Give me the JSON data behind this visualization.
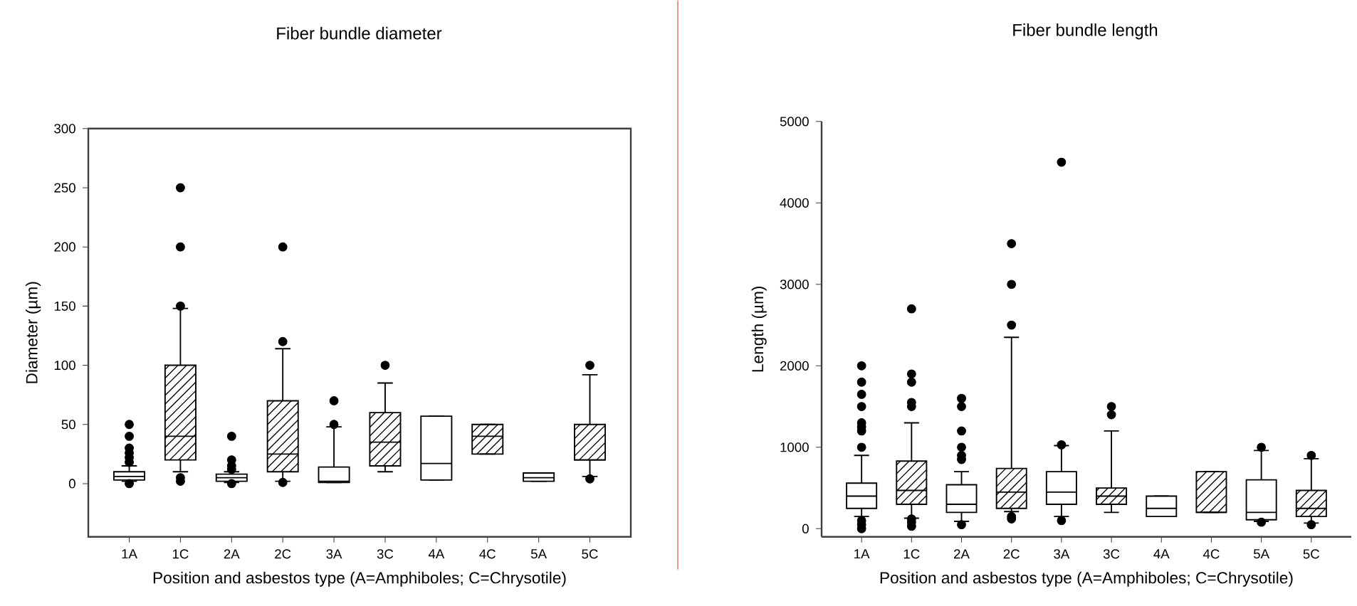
{
  "chart_data": [
    {
      "type": "box",
      "title": "Fiber bundle diameter",
      "xlabel": "Position and asbestos type (A=Amphiboles; C=Chrysotile)",
      "ylabel": "Diameter (µm)",
      "categories": [
        "1A",
        "1C",
        "2A",
        "2C",
        "3A",
        "3C",
        "4A",
        "4C",
        "5A",
        "5C"
      ],
      "ylim": [
        -45,
        300
      ],
      "yticks": [
        0,
        50,
        100,
        150,
        200,
        250,
        300
      ],
      "marker": "circle",
      "series": [
        {
          "color": "#ffffff",
          "boxes": [
            {
              "low": 2,
              "q1": 3,
              "median": 6,
              "q3": 10,
              "high": 15,
              "outliers": [
                0,
                18,
                22,
                26,
                30,
                40,
                50
              ]
            },
            null,
            {
              "low": 1,
              "q1": 2,
              "median": 5,
              "q3": 8,
              "high": 10,
              "outliers": [
                0,
                12,
                15,
                20,
                40
              ]
            },
            null,
            {
              "low": 1,
              "q1": 1,
              "median": 2,
              "q3": 14,
              "high": 48,
              "outliers": [
                50,
                70
              ]
            },
            null,
            {
              "low": 3,
              "q1": 3,
              "median": 17,
              "q3": 57,
              "high": 57
            },
            null,
            {
              "low": 2,
              "q1": 2,
              "median": 5,
              "q3": 9,
              "high": 9
            },
            null
          ]
        },
        {
          "color": "#000000",
          "boxes": [
            null,
            {
              "low": 10,
              "q1": 20,
              "median": 40,
              "q3": 100,
              "high": 148,
              "outliers": [
                2,
                5,
                150,
                200,
                250
              ]
            },
            null,
            {
              "low": 2,
              "q1": 10,
              "median": 25,
              "q3": 70,
              "high": 114,
              "outliers": [
                1,
                120,
                200
              ]
            },
            null,
            {
              "low": 10,
              "q1": 15,
              "median": 35,
              "q3": 60,
              "high": 85,
              "outliers": [
                100
              ]
            },
            null,
            {
              "low": 25,
              "q1": 25,
              "median": 40,
              "q3": 50,
              "high": 50
            },
            null,
            {
              "low": 6,
              "q1": 20,
              "median": 20,
              "q3": 50,
              "high": 92,
              "outliers": [
                4,
                100
              ]
            }
          ]
        }
      ]
    },
    {
      "type": "box",
      "title": "Fiber bundle length",
      "xlabel": "Position and asbestos type (A=Amphiboles; C=Chrysotile)",
      "ylabel": "Length (µm)",
      "categories": [
        "1A",
        "1C",
        "2A",
        "2C",
        "3A",
        "3C",
        "4A",
        "4C",
        "5A",
        "5C"
      ],
      "ylim": [
        -100,
        5000
      ],
      "yticks": [
        0,
        1000,
        2000,
        3000,
        4000,
        5000
      ],
      "marker": "circle",
      "series": [
        {
          "color": "#ffffff",
          "boxes": [
            {
              "low": 150,
              "q1": 250,
              "median": 400,
              "q3": 560,
              "high": 900,
              "outliers": [
                0,
                50,
                100,
                1000,
                1200,
                1250,
                1300,
                1500,
                1650,
                1800,
                2000
              ]
            },
            null,
            {
              "low": 90,
              "q1": 200,
              "median": 300,
              "q3": 540,
              "high": 700,
              "outliers": [
                50,
                850,
                900,
                1000,
                1200,
                1500,
                1600
              ]
            },
            null,
            {
              "low": 150,
              "q1": 300,
              "median": 450,
              "q3": 700,
              "high": 1020,
              "outliers": [
                100,
                1030,
                4500
              ]
            },
            null,
            {
              "low": 150,
              "q1": 150,
              "median": 250,
              "q3": 400,
              "high": 400
            },
            null,
            {
              "low": 90,
              "q1": 110,
              "median": 200,
              "q3": 600,
              "high": 960,
              "outliers": [
                80,
                1000
              ]
            },
            null
          ]
        },
        {
          "color": "#000000",
          "boxes": [
            null,
            {
              "low": 130,
              "q1": 300,
              "median": 470,
              "q3": 830,
              "high": 1300,
              "outliers": [
                30,
                80,
                120,
                1500,
                1550,
                1800,
                1900,
                2700
              ]
            },
            null,
            {
              "low": 210,
              "q1": 250,
              "median": 450,
              "q3": 740,
              "high": 2350,
              "outliers": [
                120,
                150,
                2500,
                3000,
                3500
              ]
            },
            null,
            {
              "low": 200,
              "q1": 300,
              "median": 400,
              "q3": 500,
              "high": 1200,
              "outliers": [
                1400,
                1500
              ]
            },
            null,
            {
              "low": 200,
              "q1": 200,
              "median": 200,
              "q3": 700,
              "high": 700
            },
            null,
            {
              "low": 70,
              "q1": 150,
              "median": 250,
              "q3": 470,
              "high": 860,
              "outliers": [
                50,
                900
              ]
            }
          ]
        }
      ]
    }
  ]
}
